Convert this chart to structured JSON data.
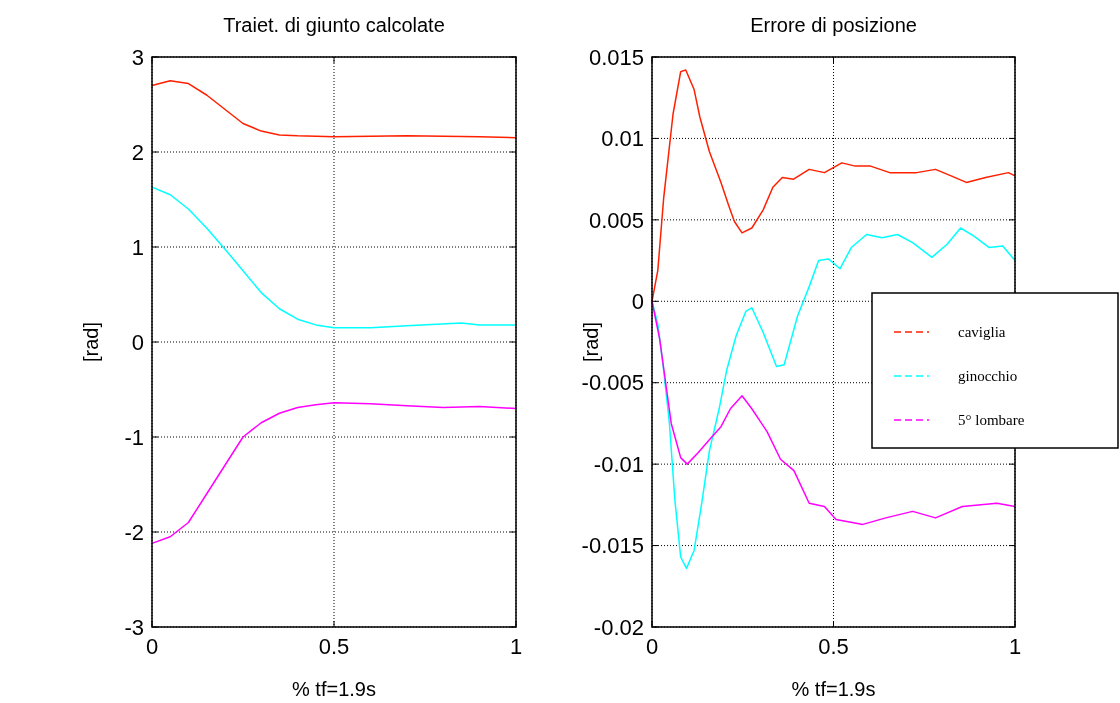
{
  "chart_data": [
    {
      "type": "line",
      "title": "Traiet. di giunto calcolate",
      "xlabel": "%  tf=1.9s",
      "ylabel": "[rad]",
      "xlim": [
        0,
        1
      ],
      "xticks": [
        0,
        0.5,
        1
      ],
      "ylim": [
        -3,
        3
      ],
      "yticks": [
        -3,
        -2,
        -1,
        0,
        1,
        2,
        3
      ],
      "grid": true,
      "legend": false,
      "series": [
        {
          "color": "#ff2000",
          "x": [
            0,
            0.05,
            0.1,
            0.15,
            0.2,
            0.25,
            0.3,
            0.35,
            0.4,
            0.5,
            0.7,
            0.9,
            1
          ],
          "values": [
            2.7,
            2.75,
            2.72,
            2.6,
            2.45,
            2.3,
            2.22,
            2.18,
            2.17,
            2.16,
            2.17,
            2.16,
            2.15
          ]
        },
        {
          "color": "#00ffff",
          "x": [
            0,
            0.05,
            0.1,
            0.15,
            0.2,
            0.25,
            0.3,
            0.35,
            0.4,
            0.45,
            0.5,
            0.6,
            0.7,
            0.85,
            0.9,
            1
          ],
          "values": [
            1.63,
            1.55,
            1.4,
            1.2,
            0.98,
            0.75,
            0.52,
            0.35,
            0.24,
            0.18,
            0.15,
            0.15,
            0.17,
            0.2,
            0.18,
            0.18
          ]
        },
        {
          "color": "#ff00ff",
          "x": [
            0,
            0.05,
            0.1,
            0.15,
            0.2,
            0.25,
            0.3,
            0.35,
            0.4,
            0.45,
            0.5,
            0.6,
            0.7,
            0.8,
            0.9,
            1
          ],
          "values": [
            -2.12,
            -2.05,
            -1.9,
            -1.6,
            -1.3,
            -1.0,
            -0.85,
            -0.75,
            -0.69,
            -0.66,
            -0.64,
            -0.65,
            -0.67,
            -0.69,
            -0.68,
            -0.7
          ]
        }
      ]
    },
    {
      "type": "line",
      "title": "Errore di posizione",
      "xlabel": "%  tf=1.9s",
      "ylabel": "[rad]",
      "xlim": [
        0,
        1
      ],
      "xticks": [
        0,
        0.5,
        1
      ],
      "ylim": [
        -0.02,
        0.015
      ],
      "yticks": [
        {
          "value": -0.02,
          "label": "-0.02"
        },
        {
          "value": -0.015,
          "label": "-0.015"
        },
        {
          "value": -0.01,
          "label": "-0.01"
        },
        {
          "value": -0.005,
          "label": "-0.005"
        },
        0,
        {
          "value": 0.005,
          "label": "0.005"
        },
        {
          "value": 0.01,
          "label": "0.01"
        },
        {
          "value": 0.015,
          "label": "0.015"
        }
      ],
      "grid": true,
      "legend": "right",
      "series": [
        {
          "name": "caviglia",
          "color": "#ff2000",
          "x": [
            0,
            0.016,
            0.032,
            0.058,
            0.079,
            0.093,
            0.116,
            0.132,
            0.158,
            0.19,
            0.211,
            0.227,
            0.248,
            0.275,
            0.306,
            0.333,
            0.359,
            0.39,
            0.433,
            0.475,
            0.523,
            0.56,
            0.602,
            0.655,
            0.729,
            0.781,
            0.824,
            0.866,
            0.919,
            0.982,
            1
          ],
          "values": [
            0,
            0.0019,
            0.0063,
            0.0115,
            0.0141,
            0.0142,
            0.013,
            0.0113,
            0.0092,
            0.0073,
            0.0059,
            0.0049,
            0.0042,
            0.0045,
            0.0056,
            0.007,
            0.0076,
            0.0075,
            0.0081,
            0.0079,
            0.0085,
            0.0083,
            0.0083,
            0.0079,
            0.0079,
            0.0081,
            0.0077,
            0.0073,
            0.0076,
            0.0079,
            0.0077
          ]
        },
        {
          "name": "ginocchio",
          "color": "#00ffff",
          "x": [
            0,
            0.016,
            0.032,
            0.048,
            0.063,
            0.079,
            0.095,
            0.116,
            0.137,
            0.158,
            0.185,
            0.206,
            0.232,
            0.259,
            0.275,
            0.306,
            0.343,
            0.364,
            0.401,
            0.433,
            0.459,
            0.486,
            0.518,
            0.549,
            0.591,
            0.634,
            0.676,
            0.718,
            0.771,
            0.813,
            0.85,
            0.887,
            0.929,
            0.966,
            1
          ],
          "values": [
            0,
            -0.0014,
            -0.0042,
            -0.0075,
            -0.0122,
            -0.0157,
            -0.0164,
            -0.0153,
            -0.0124,
            -0.0092,
            -0.0066,
            -0.0042,
            -0.0021,
            -0.0006,
            -0.0004,
            -0.0019,
            -0.004,
            -0.0039,
            -0.0009,
            0.0009,
            0.0025,
            0.0026,
            0.002,
            0.0033,
            0.0041,
            0.0039,
            0.0041,
            0.0036,
            0.0027,
            0.0035,
            0.0045,
            0.004,
            0.0033,
            0.0034,
            0.0025
          ]
        },
        {
          "name": "5° lombare",
          "color": "#ff00ff",
          "x": [
            0,
            0.021,
            0.053,
            0.079,
            0.097,
            0.127,
            0.158,
            0.19,
            0.216,
            0.248,
            0.275,
            0.317,
            0.354,
            0.391,
            0.433,
            0.475,
            0.507,
            0.581,
            0.644,
            0.718,
            0.781,
            0.855,
            0.95,
            1
          ],
          "values": [
            0,
            -0.0023,
            -0.0075,
            -0.0096,
            -0.01,
            -0.0093,
            -0.0085,
            -0.0077,
            -0.0066,
            -0.0058,
            -0.0066,
            -0.008,
            -0.0097,
            -0.0104,
            -0.0124,
            -0.0126,
            -0.0134,
            -0.0137,
            -0.0133,
            -0.0129,
            -0.0133,
            -0.0126,
            -0.0124,
            -0.0126
          ]
        }
      ]
    }
  ]
}
